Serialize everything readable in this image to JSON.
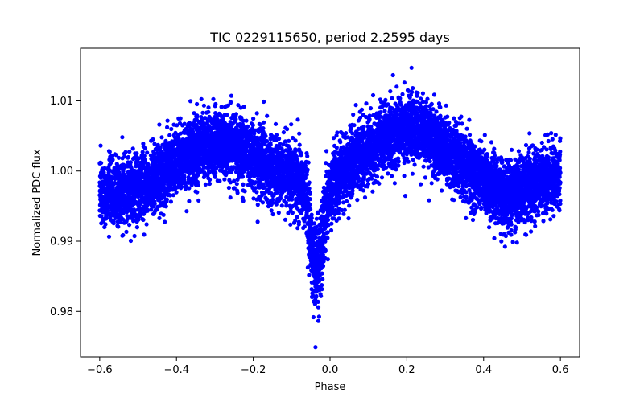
{
  "chart_data": {
    "type": "scatter",
    "title": "TIC 0229115650, period 2.2595 days",
    "xlabel": "Phase",
    "ylabel": "Normalized PDC flux",
    "xlim": [
      -0.65,
      0.65
    ],
    "ylim": [
      0.9735,
      1.0175
    ],
    "xticks": [
      -0.6,
      -0.4,
      -0.2,
      0.0,
      0.2,
      0.4,
      0.6
    ],
    "xtick_labels": [
      "−0.6",
      "−0.4",
      "−0.2",
      "0.0",
      "0.2",
      "0.4",
      "0.6"
    ],
    "yticks": [
      0.98,
      0.99,
      1.0,
      1.01
    ],
    "ytick_labels": [
      "0.98",
      "0.99",
      "1.00",
      "1.01"
    ],
    "grid": false,
    "marker_color": "#0000ff",
    "phase_range": [
      -0.6,
      0.6
    ],
    "n_points": 9000,
    "trend": {
      "x": [
        -0.6,
        -0.55,
        -0.5,
        -0.45,
        -0.4,
        -0.35,
        -0.3,
        -0.25,
        -0.2,
        -0.15,
        -0.1,
        -0.08,
        -0.06,
        -0.05,
        -0.04,
        -0.03,
        -0.02,
        -0.01,
        0.0,
        0.02,
        0.05,
        0.1,
        0.15,
        0.2,
        0.25,
        0.3,
        0.35,
        0.4,
        0.45,
        0.5,
        0.55,
        0.6
      ],
      "y": [
        0.9972,
        0.9968,
        0.9975,
        0.9988,
        1.001,
        1.0032,
        1.004,
        1.0035,
        1.002,
        1.0005,
        0.9995,
        0.9985,
        0.996,
        0.99,
        0.986,
        0.9875,
        0.9905,
        0.995,
        0.9972,
        0.999,
        1.001,
        1.003,
        1.005,
        1.0062,
        1.0055,
        1.003,
        1.0005,
        0.9985,
        0.9965,
        0.9975,
        0.9985,
        0.9995
      ]
    },
    "scatter_sigma": 0.0023
  }
}
